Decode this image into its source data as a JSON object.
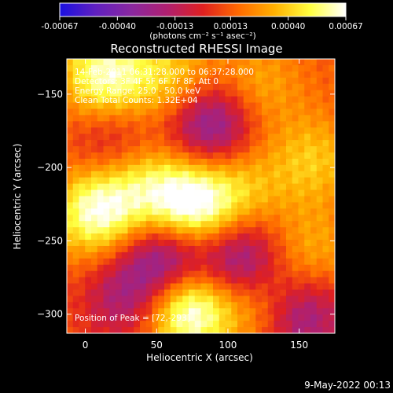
{
  "colorbar": {
    "ticks": [
      "-0.00067",
      "-0.00040",
      "-0.00013",
      "0.00013",
      "0.00040",
      "0.00067"
    ],
    "tick_values": [
      -0.00067,
      -0.0004,
      -0.00013,
      0.00013,
      0.0004,
      0.00067
    ],
    "units_label": "(photons cm⁻² s⁻¹ asec⁻²)",
    "colors": [
      "#1a10e0",
      "#6020c0",
      "#8a28a0",
      "#b02070",
      "#e02020",
      "#ff6a00",
      "#ffb000",
      "#ffff40",
      "#ffffff"
    ]
  },
  "header": {
    "title": "Reconstructed RHESSI Image",
    "info_lines": [
      "14-Feb-2011 06:31:28.000 to 06:37:28.000",
      "Detectors: 3F 4F 5F 6F 7F 8F, Att 0",
      "Energy Range: 25.0 - 50.0 keV",
      "Clean     Total Counts: 1.32E+04"
    ],
    "peak_text": "Position of Peak = [72,-293]"
  },
  "footer": {
    "date": "9-May-2022 00:13"
  },
  "chart_data": {
    "type": "heatmap",
    "title": "Reconstructed RHESSI Image",
    "xlabel": "Heliocentric X (arcsec)",
    "ylabel": "Heliocentric Y (arcsec)",
    "xlim": [
      -13,
      175
    ],
    "ylim": [
      -313,
      -126
    ],
    "x_ticks": [
      0,
      50,
      100,
      150
    ],
    "y_ticks": [
      -150,
      -200,
      -250,
      -300
    ],
    "clim": [
      -0.00067,
      0.00067
    ],
    "peak": [
      72,
      -293
    ],
    "sources": [
      {
        "x": 72,
        "y": -295,
        "value": 0.00067
      },
      {
        "x": 74,
        "y": -227,
        "value": 0.00062
      },
      {
        "x": 8,
        "y": -230,
        "value": 0.00052
      },
      {
        "x": 14,
        "y": -137,
        "value": 0.0005
      },
      {
        "x": 62,
        "y": -140,
        "value": 0.0003
      },
      {
        "x": 125,
        "y": -290,
        "value": 0.00034
      },
      {
        "x": 160,
        "y": -195,
        "value": 0.00026
      },
      {
        "x": 158,
        "y": -258,
        "value": 0.00022
      },
      {
        "x": 120,
        "y": -145,
        "value": 0.00022
      },
      {
        "x": 40,
        "y": -210,
        "value": 0.0003
      },
      {
        "x": 110,
        "y": -215,
        "value": 0.00024
      },
      {
        "x": 88,
        "y": -170,
        "value": -0.0005
      },
      {
        "x": 58,
        "y": -263,
        "value": -0.00055
      },
      {
        "x": 110,
        "y": -265,
        "value": -0.0005
      },
      {
        "x": 28,
        "y": -290,
        "value": -0.0003
      },
      {
        "x": 150,
        "y": -300,
        "value": -0.00045
      },
      {
        "x": 20,
        "y": -185,
        "value": -0.00025
      }
    ]
  }
}
